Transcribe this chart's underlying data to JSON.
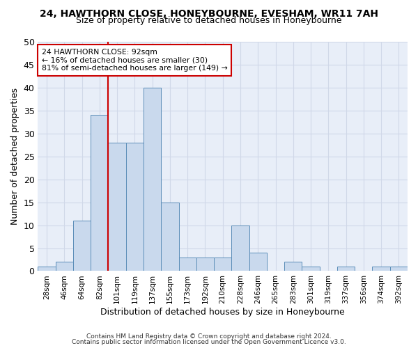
{
  "title": "24, HAWTHORN CLOSE, HONEYBOURNE, EVESHAM, WR11 7AH",
  "subtitle": "Size of property relative to detached houses in Honeybourne",
  "xlabel": "Distribution of detached houses by size in Honeybourne",
  "ylabel": "Number of detached properties",
  "bin_labels": [
    "28sqm",
    "46sqm",
    "64sqm",
    "82sqm",
    "101sqm",
    "119sqm",
    "137sqm",
    "155sqm",
    "173sqm",
    "192sqm",
    "210sqm",
    "228sqm",
    "246sqm",
    "265sqm",
    "283sqm",
    "301sqm",
    "319sqm",
    "337sqm",
    "356sqm",
    "374sqm",
    "392sqm"
  ],
  "bar_values": [
    1,
    2,
    11,
    34,
    28,
    28,
    40,
    15,
    3,
    3,
    3,
    10,
    4,
    0,
    2,
    1,
    0,
    1,
    0,
    1,
    1
  ],
  "bar_color": "#c9d9ed",
  "bar_edge_color": "#5b8db8",
  "grid_color": "#d0d8e8",
  "bg_color": "#e8eef8",
  "vline_x": 3.5,
  "vline_color": "#cc0000",
  "annotation_line1": "24 HAWTHORN CLOSE: 92sqm",
  "annotation_line2": "← 16% of detached houses are smaller (30)",
  "annotation_line3": "81% of semi-detached houses are larger (149) →",
  "annotation_box_color": "#ffffff",
  "annotation_box_edge": "#cc0000",
  "ylim": [
    0,
    50
  ],
  "yticks": [
    0,
    5,
    10,
    15,
    20,
    25,
    30,
    35,
    40,
    45,
    50
  ],
  "footer1": "Contains HM Land Registry data © Crown copyright and database right 2024.",
  "footer2": "Contains public sector information licensed under the Open Government Licence v3.0."
}
